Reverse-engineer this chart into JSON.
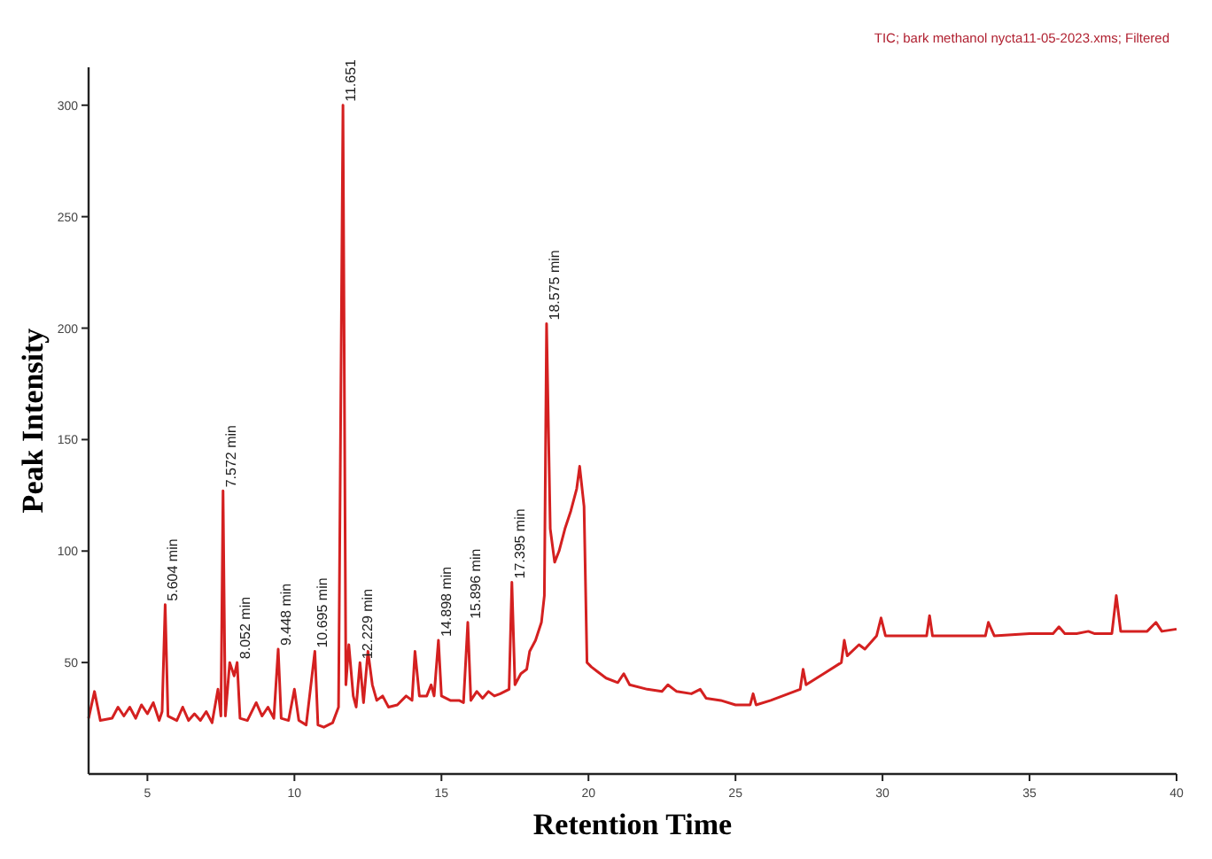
{
  "chart_data": {
    "type": "line",
    "title": "TIC;  bark methanol nycta11-05-2023.xms;  Filtered",
    "xlabel": "Retention Time",
    "ylabel": "Peak Intensity",
    "xlim": [
      3,
      40
    ],
    "ylim": [
      0,
      317
    ],
    "xticks": [
      5,
      10,
      15,
      20,
      25,
      30,
      35,
      40
    ],
    "yticks": [
      50,
      100,
      150,
      200,
      250,
      300
    ],
    "grid": false,
    "marker": "none",
    "line_style": "solid",
    "x": [
      3.0,
      3.2,
      3.4,
      3.8,
      4.0,
      4.2,
      4.4,
      4.6,
      4.8,
      5.0,
      5.2,
      5.4,
      5.5,
      5.604,
      5.7,
      6.0,
      6.2,
      6.4,
      6.6,
      6.8,
      7.0,
      7.2,
      7.4,
      7.5,
      7.572,
      7.65,
      7.8,
      7.95,
      8.052,
      8.15,
      8.4,
      8.7,
      8.9,
      9.1,
      9.3,
      9.448,
      9.55,
      9.8,
      10.0,
      10.15,
      10.4,
      10.695,
      10.8,
      11.0,
      11.3,
      11.5,
      11.651,
      11.75,
      11.85,
      12.0,
      12.1,
      12.229,
      12.35,
      12.5,
      12.65,
      12.8,
      13.0,
      13.2,
      13.5,
      13.8,
      14.0,
      14.1,
      14.25,
      14.5,
      14.65,
      14.75,
      14.898,
      15.0,
      15.3,
      15.6,
      15.75,
      15.896,
      16.0,
      16.2,
      16.4,
      16.6,
      16.8,
      17.0,
      17.3,
      17.395,
      17.5,
      17.7,
      17.9,
      18.0,
      18.2,
      18.4,
      18.5,
      18.575,
      18.7,
      18.85,
      19.0,
      19.2,
      19.4,
      19.6,
      19.7,
      19.85,
      19.95,
      20.1,
      20.3,
      20.6,
      21.0,
      21.2,
      21.4,
      22.0,
      22.5,
      22.7,
      23.0,
      23.5,
      23.8,
      24.0,
      24.5,
      25.0,
      25.5,
      25.6,
      25.7,
      26.2,
      26.8,
      27.2,
      27.3,
      27.4,
      28.0,
      28.6,
      28.7,
      28.8,
      29.2,
      29.4,
      29.8,
      29.95,
      30.1,
      31.0,
      31.5,
      31.6,
      31.7,
      33.0,
      33.5,
      33.6,
      33.8,
      35.0,
      35.8,
      36.0,
      36.2,
      36.6,
      37.0,
      37.2,
      37.8,
      37.95,
      38.1,
      39.0,
      39.3,
      39.5,
      40.0
    ],
    "series": [
      {
        "color": "#d42020",
        "values": [
          25,
          37,
          24,
          25,
          30,
          26,
          30,
          25,
          31,
          27,
          32,
          24,
          28,
          76,
          26,
          24,
          30,
          24,
          27,
          24,
          28,
          23,
          38,
          26,
          127,
          26,
          50,
          44,
          50,
          25,
          24,
          32,
          26,
          30,
          25,
          56,
          25,
          24,
          38,
          24,
          22,
          55,
          22,
          21,
          23,
          30,
          300,
          40,
          58,
          35,
          30,
          50,
          32,
          55,
          40,
          33,
          35,
          30,
          31,
          35,
          33,
          55,
          35,
          35,
          40,
          35,
          60,
          35,
          33,
          33,
          32,
          68,
          33,
          37,
          34,
          37,
          35,
          36,
          38,
          86,
          40,
          45,
          47,
          55,
          60,
          68,
          80,
          202,
          110,
          95,
          100,
          110,
          118,
          128,
          138,
          120,
          50,
          48,
          46,
          43,
          41,
          45,
          40,
          38,
          37,
          40,
          37,
          36,
          38,
          34,
          33,
          31,
          31,
          36,
          31,
          33,
          36,
          38,
          47,
          40,
          45,
          50,
          60,
          53,
          58,
          56,
          62,
          70,
          62,
          62,
          62,
          71,
          62,
          62,
          62,
          68,
          62,
          63,
          63,
          66,
          63,
          63,
          64,
          63,
          63,
          80,
          64,
          64,
          68,
          64,
          65
        ]
      }
    ],
    "annotations": [
      {
        "text": "5.604 min",
        "x": 5.604,
        "y": 76
      },
      {
        "text": "7.572 min",
        "x": 7.572,
        "y": 127
      },
      {
        "text": "8.052 min",
        "x": 8.052,
        "y": 50
      },
      {
        "text": "9.448 min",
        "x": 9.448,
        "y": 56
      },
      {
        "text": "10.695 min",
        "x": 10.695,
        "y": 55
      },
      {
        "text": "11.651",
        "x": 11.651,
        "y": 300
      },
      {
        "text": "12.229 min",
        "x": 12.229,
        "y": 50
      },
      {
        "text": "14.898 min",
        "x": 14.898,
        "y": 60
      },
      {
        "text": "15.896 min",
        "x": 15.896,
        "y": 68
      },
      {
        "text": "17.395 min",
        "x": 17.395,
        "y": 86
      },
      {
        "text": "18.575 min",
        "x": 18.575,
        "y": 202
      }
    ]
  }
}
